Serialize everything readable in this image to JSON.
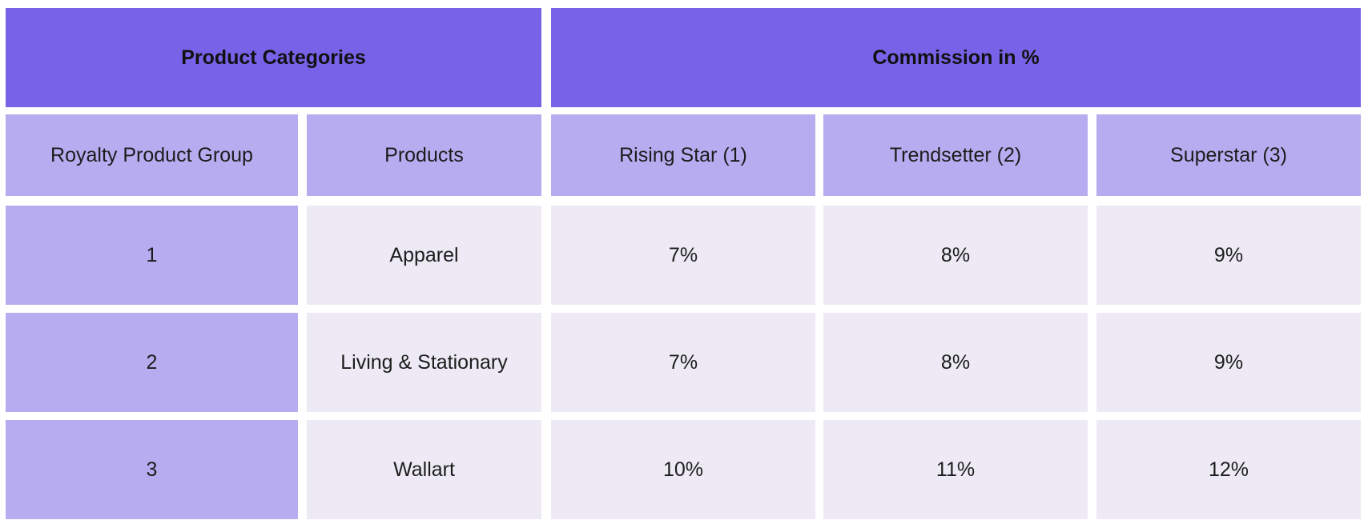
{
  "table": {
    "top_headers": {
      "product_categories": "Product Categories",
      "commission": "Commission in %"
    },
    "sub_headers": {
      "royalty_product_group": "Royalty Product Group",
      "products": "Products",
      "rising_star": "Rising Star (1)",
      "trendsetter": "Trendsetter (2)",
      "superstar": "Superstar (3)"
    },
    "rows": [
      {
        "group": "1",
        "product": "Apparel",
        "rising_star": "7%",
        "trendsetter": "8%",
        "superstar": "9%"
      },
      {
        "group": "2",
        "product": "Living & Stationary",
        "rising_star": "7%",
        "trendsetter": "8%",
        "superstar": "9%"
      },
      {
        "group": "3",
        "product": "Wallart",
        "rising_star": "10%",
        "trendsetter": "11%",
        "superstar": "12%"
      }
    ]
  },
  "colors": {
    "top_header_bg": "#7862e8",
    "sub_header_bg": "#b7acf0",
    "group_cell_bg": "#b7acf0",
    "body_cell_bg": "#edeaf5"
  }
}
